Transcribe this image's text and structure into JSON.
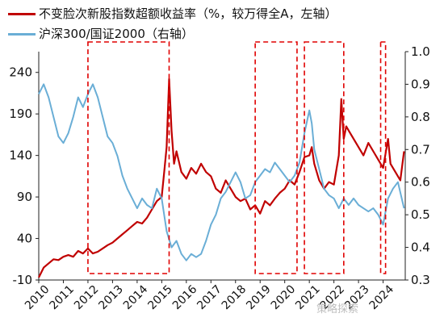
{
  "chart_data": {
    "type": "line",
    "legend": [
      {
        "label": "不变脸次新股指数超额收益率（%，较万得全A，左轴）",
        "color": "#c00000"
      },
      {
        "label": "沪深300/国证2000（右轴）",
        "color": "#6aaed6"
      }
    ],
    "y_left": {
      "ticks": [
        -10,
        40,
        90,
        140,
        190,
        240
      ],
      "range": [
        -10,
        265
      ]
    },
    "y_right": {
      "ticks": [
        "0.3",
        "0.4",
        "0.5",
        "0.6",
        "0.7",
        "0.8",
        "0.9",
        "1.0"
      ],
      "range": [
        0.3,
        1.0
      ]
    },
    "x_ticks": [
      "2010",
      "2011",
      "2012",
      "2013",
      "2014",
      "2015",
      "2016",
      "2017",
      "2018",
      "2019",
      "2020",
      "2021",
      "2022",
      "2023",
      "2024"
    ],
    "x_range": [
      2010.0,
      2024.9
    ],
    "series": [
      {
        "name": "不变脸次新股指数超额收益率（%，较万得全A，左轴）",
        "axis": "left",
        "color": "#c00000",
        "points": [
          [
            2010.0,
            -7
          ],
          [
            2010.2,
            5
          ],
          [
            2010.4,
            10
          ],
          [
            2010.6,
            15
          ],
          [
            2010.8,
            14
          ],
          [
            2011.0,
            18
          ],
          [
            2011.2,
            20
          ],
          [
            2011.4,
            18
          ],
          [
            2011.6,
            25
          ],
          [
            2011.8,
            22
          ],
          [
            2012.0,
            28
          ],
          [
            2012.2,
            22
          ],
          [
            2012.4,
            24
          ],
          [
            2012.6,
            28
          ],
          [
            2012.8,
            32
          ],
          [
            2013.0,
            35
          ],
          [
            2013.2,
            40
          ],
          [
            2013.4,
            45
          ],
          [
            2013.6,
            50
          ],
          [
            2013.8,
            55
          ],
          [
            2014.0,
            60
          ],
          [
            2014.2,
            58
          ],
          [
            2014.4,
            65
          ],
          [
            2014.6,
            75
          ],
          [
            2014.8,
            85
          ],
          [
            2015.0,
            90
          ],
          [
            2015.1,
            120
          ],
          [
            2015.2,
            150
          ],
          [
            2015.3,
            232
          ],
          [
            2015.4,
            170
          ],
          [
            2015.5,
            130
          ],
          [
            2015.6,
            145
          ],
          [
            2015.8,
            120
          ],
          [
            2016.0,
            112
          ],
          [
            2016.2,
            125
          ],
          [
            2016.4,
            118
          ],
          [
            2016.6,
            130
          ],
          [
            2016.8,
            120
          ],
          [
            2017.0,
            115
          ],
          [
            2017.2,
            100
          ],
          [
            2017.4,
            95
          ],
          [
            2017.6,
            110
          ],
          [
            2017.8,
            100
          ],
          [
            2018.0,
            90
          ],
          [
            2018.2,
            85
          ],
          [
            2018.4,
            88
          ],
          [
            2018.6,
            75
          ],
          [
            2018.8,
            80
          ],
          [
            2019.0,
            70
          ],
          [
            2019.2,
            85
          ],
          [
            2019.4,
            80
          ],
          [
            2019.6,
            88
          ],
          [
            2019.8,
            95
          ],
          [
            2020.0,
            100
          ],
          [
            2020.2,
            110
          ],
          [
            2020.4,
            105
          ],
          [
            2020.6,
            120
          ],
          [
            2020.8,
            138
          ],
          [
            2021.0,
            140
          ],
          [
            2021.1,
            150
          ],
          [
            2021.2,
            130
          ],
          [
            2021.4,
            110
          ],
          [
            2021.6,
            100
          ],
          [
            2021.8,
            108
          ],
          [
            2022.0,
            105
          ],
          [
            2022.2,
            140
          ],
          [
            2022.3,
            208
          ],
          [
            2022.4,
            160
          ],
          [
            2022.5,
            175
          ],
          [
            2022.6,
            170
          ],
          [
            2022.8,
            160
          ],
          [
            2023.0,
            150
          ],
          [
            2023.2,
            140
          ],
          [
            2023.4,
            155
          ],
          [
            2023.6,
            145
          ],
          [
            2023.8,
            135
          ],
          [
            2024.0,
            125
          ],
          [
            2024.2,
            160
          ],
          [
            2024.3,
            130
          ],
          [
            2024.5,
            120
          ],
          [
            2024.7,
            110
          ],
          [
            2024.85,
            145
          ]
        ]
      },
      {
        "name": "沪深300/国证2000（右轴）",
        "axis": "right",
        "color": "#6aaed6",
        "points": [
          [
            2010.0,
            0.87
          ],
          [
            2010.2,
            0.9
          ],
          [
            2010.4,
            0.86
          ],
          [
            2010.6,
            0.8
          ],
          [
            2010.8,
            0.74
          ],
          [
            2011.0,
            0.72
          ],
          [
            2011.2,
            0.75
          ],
          [
            2011.4,
            0.8
          ],
          [
            2011.6,
            0.86
          ],
          [
            2011.8,
            0.83
          ],
          [
            2012.0,
            0.87
          ],
          [
            2012.2,
            0.9
          ],
          [
            2012.4,
            0.86
          ],
          [
            2012.6,
            0.8
          ],
          [
            2012.8,
            0.74
          ],
          [
            2013.0,
            0.72
          ],
          [
            2013.2,
            0.68
          ],
          [
            2013.4,
            0.62
          ],
          [
            2013.6,
            0.58
          ],
          [
            2013.8,
            0.55
          ],
          [
            2014.0,
            0.52
          ],
          [
            2014.2,
            0.55
          ],
          [
            2014.4,
            0.53
          ],
          [
            2014.6,
            0.52
          ],
          [
            2014.8,
            0.58
          ],
          [
            2015.0,
            0.55
          ],
          [
            2015.2,
            0.45
          ],
          [
            2015.4,
            0.4
          ],
          [
            2015.6,
            0.42
          ],
          [
            2015.8,
            0.38
          ],
          [
            2016.0,
            0.36
          ],
          [
            2016.2,
            0.38
          ],
          [
            2016.4,
            0.37
          ],
          [
            2016.6,
            0.38
          ],
          [
            2016.8,
            0.42
          ],
          [
            2017.0,
            0.47
          ],
          [
            2017.2,
            0.5
          ],
          [
            2017.4,
            0.55
          ],
          [
            2017.6,
            0.57
          ],
          [
            2017.8,
            0.6
          ],
          [
            2018.0,
            0.63
          ],
          [
            2018.2,
            0.6
          ],
          [
            2018.4,
            0.55
          ],
          [
            2018.6,
            0.56
          ],
          [
            2018.8,
            0.6
          ],
          [
            2019.0,
            0.62
          ],
          [
            2019.2,
            0.64
          ],
          [
            2019.4,
            0.63
          ],
          [
            2019.6,
            0.66
          ],
          [
            2019.8,
            0.64
          ],
          [
            2020.0,
            0.62
          ],
          [
            2020.2,
            0.6
          ],
          [
            2020.4,
            0.62
          ],
          [
            2020.6,
            0.66
          ],
          [
            2020.8,
            0.75
          ],
          [
            2021.0,
            0.82
          ],
          [
            2021.1,
            0.78
          ],
          [
            2021.2,
            0.7
          ],
          [
            2021.4,
            0.64
          ],
          [
            2021.6,
            0.58
          ],
          [
            2021.8,
            0.56
          ],
          [
            2022.0,
            0.55
          ],
          [
            2022.2,
            0.52
          ],
          [
            2022.4,
            0.55
          ],
          [
            2022.6,
            0.53
          ],
          [
            2022.8,
            0.55
          ],
          [
            2023.0,
            0.53
          ],
          [
            2023.2,
            0.52
          ],
          [
            2023.4,
            0.51
          ],
          [
            2023.6,
            0.52
          ],
          [
            2023.8,
            0.5
          ],
          [
            2024.0,
            0.47
          ],
          [
            2024.2,
            0.55
          ],
          [
            2024.4,
            0.58
          ],
          [
            2024.6,
            0.6
          ],
          [
            2024.85,
            0.52
          ]
        ]
      }
    ],
    "highlight_periods": [
      [
        2012.0,
        2015.3
      ],
      [
        2018.8,
        2020.5
      ],
      [
        2020.8,
        2022.4
      ],
      [
        2023.9,
        2024.1
      ]
    ],
    "highlight_style": "red-dashed-box",
    "grid": false
  },
  "watermark": "策略探索"
}
